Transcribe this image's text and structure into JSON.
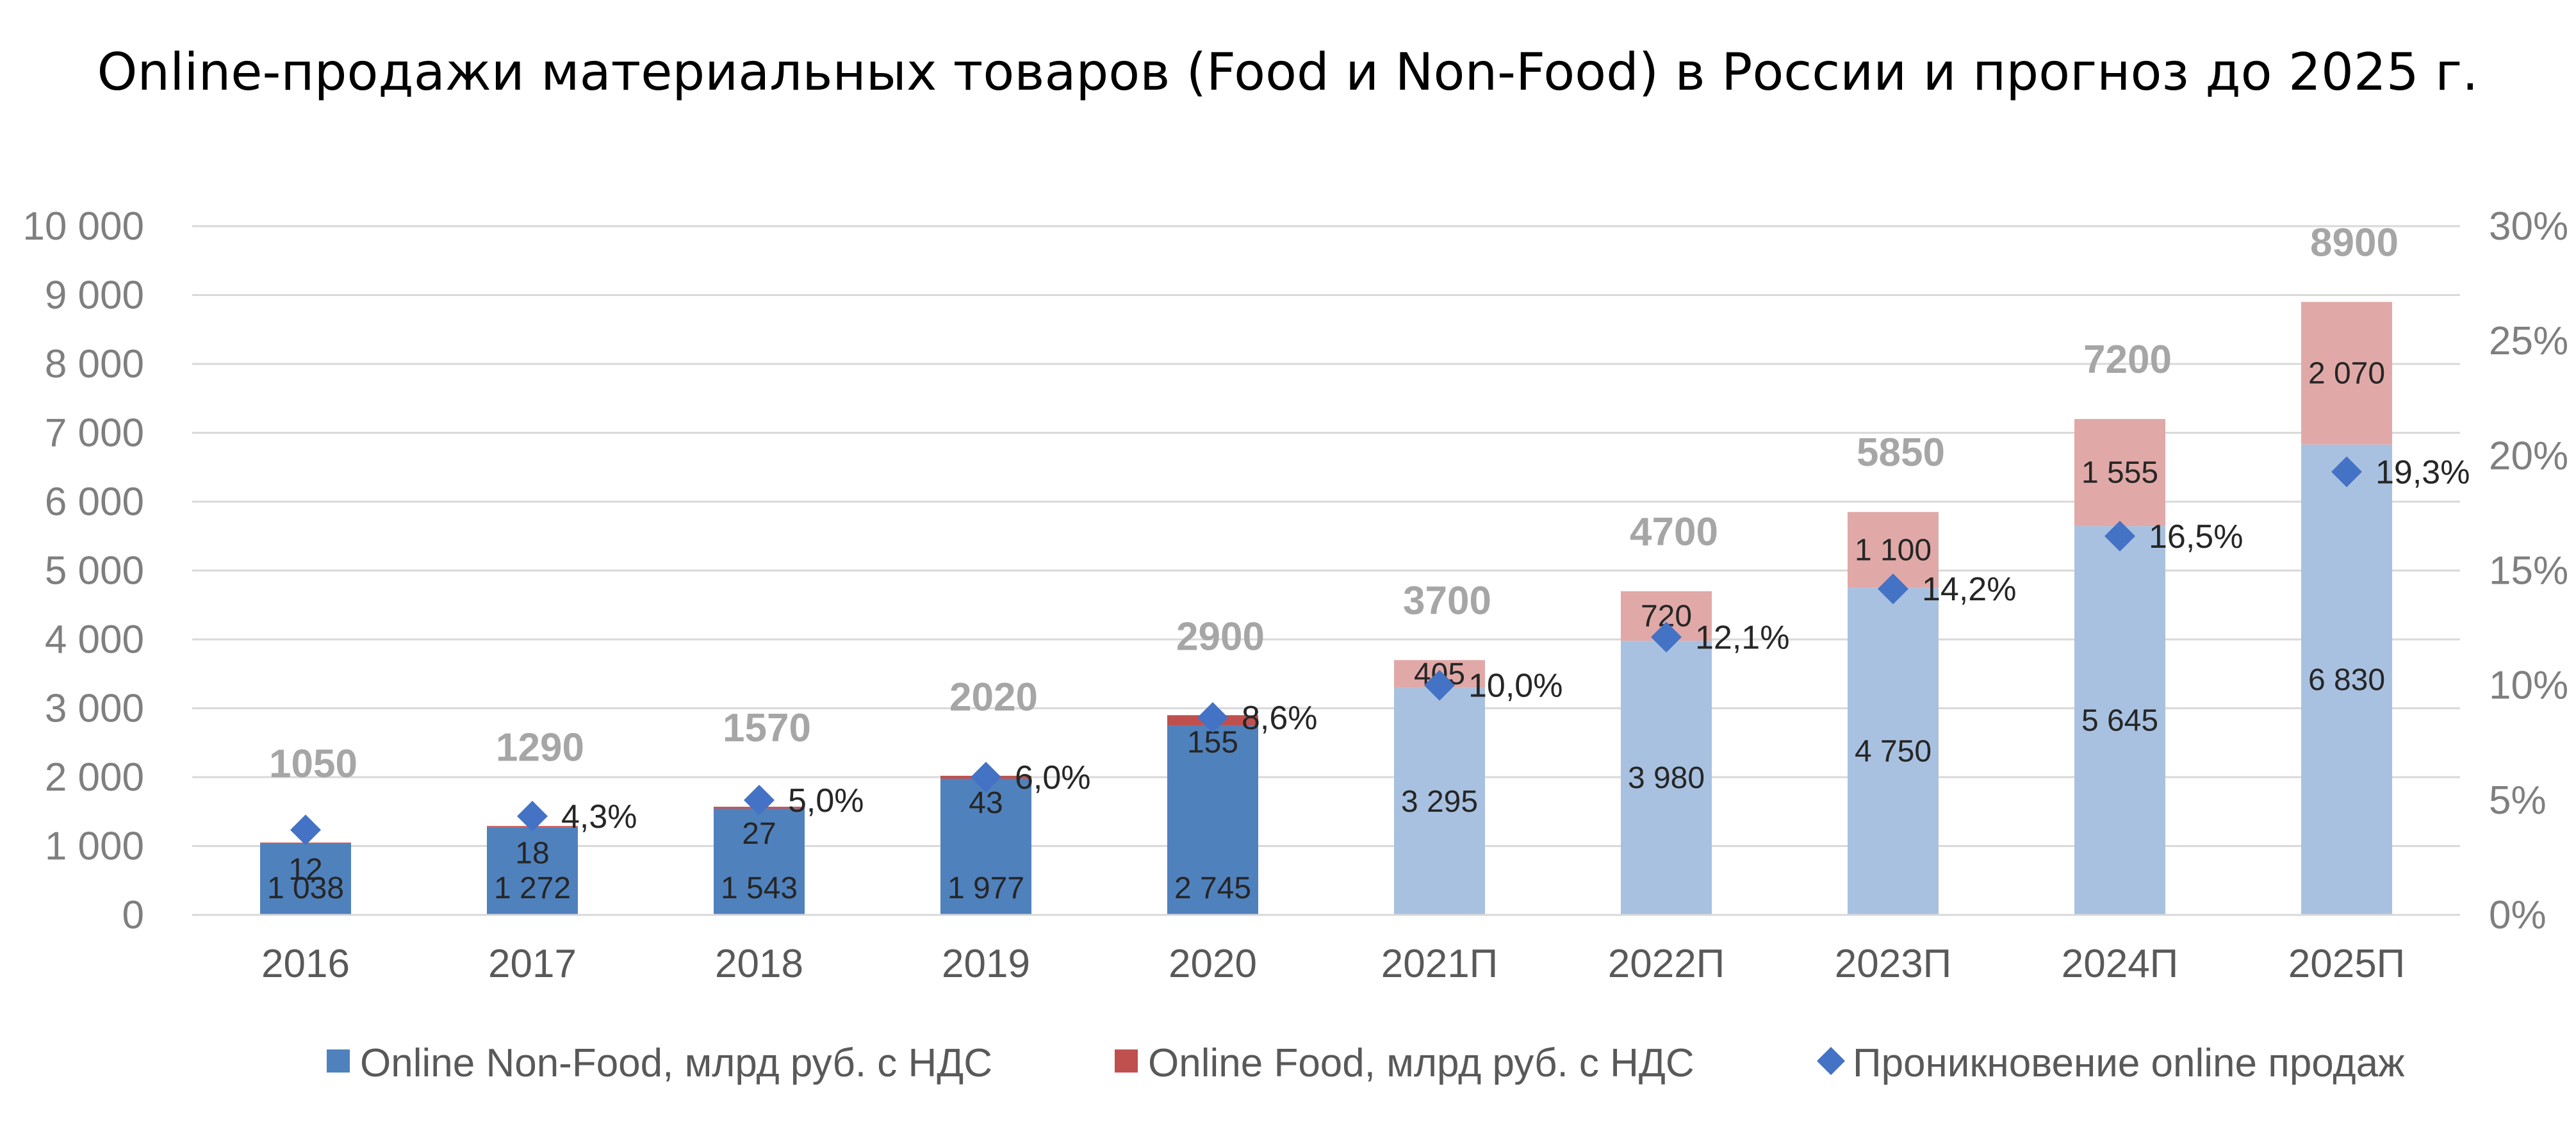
{
  "chart_data": {
    "type": "bar",
    "stacked": true,
    "title": "Online-продажи материальных товаров (Food и Non-Food) в России и прогноз до 2025 г.",
    "categories": [
      "2016",
      "2017",
      "2018",
      "2019",
      "2020",
      "2021П",
      "2022П",
      "2023П",
      "2024П",
      "2025П"
    ],
    "forecast_from_index": 5,
    "series": [
      {
        "name": "Online Non-Food, млрд руб. с НДС",
        "axis": "left",
        "values": [
          1038,
          1272,
          1543,
          1977,
          2745,
          3295,
          3980,
          4750,
          5645,
          6830
        ],
        "labels": [
          "1 038",
          "1 272",
          "1 543",
          "1 977",
          "2 745",
          "3 295",
          "3 980",
          "4 750",
          "5 645",
          "6 830"
        ],
        "color": "#4f81bd",
        "forecast_color": "#a8c1e0"
      },
      {
        "name": "Online Food, млрд руб. с НДС",
        "axis": "left",
        "values": [
          12,
          18,
          27,
          43,
          155,
          405,
          720,
          1100,
          1555,
          2070
        ],
        "labels": [
          "12",
          "18",
          "27",
          "43",
          "155",
          "405",
          "720",
          "1 100",
          "1 555",
          "2 070"
        ],
        "color": "#c0504d",
        "forecast_color": "#e0a9a7"
      },
      {
        "name": "Проникновение online продаж",
        "axis": "right",
        "type": "scatter",
        "marker": "diamond",
        "values": [
          3.7,
          4.3,
          5.0,
          6.0,
          8.6,
          10.0,
          12.1,
          14.2,
          16.5,
          19.3
        ],
        "labels": [
          "",
          "4,3%",
          "5,0%",
          "6,0%",
          "8,6%",
          "10,0%",
          "12,1%",
          "14,2%",
          "16,5%",
          "19,3%"
        ],
        "color": "#4472c4"
      }
    ],
    "totals": [
      1050,
      1290,
      1570,
      2020,
      2900,
      3700,
      4700,
      5850,
      7200,
      8900
    ],
    "y_left": {
      "lim": [
        0,
        10000
      ],
      "ticks": [
        0,
        1000,
        2000,
        3000,
        4000,
        5000,
        6000,
        7000,
        8000,
        9000,
        10000
      ],
      "tick_labels": [
        "0",
        "1 000",
        "2 000",
        "3 000",
        "4 000",
        "5 000",
        "6 000",
        "7 000",
        "8 000",
        "9 000",
        "10 000"
      ]
    },
    "y_right": {
      "lim": [
        0,
        30
      ],
      "ticks": [
        0,
        5,
        10,
        15,
        20,
        25,
        30
      ],
      "tick_labels": [
        "0%",
        "5%",
        "10%",
        "15%",
        "20%",
        "25%",
        "30%"
      ]
    },
    "xlabel": "",
    "ylabel": "",
    "grid": true,
    "legend": "bottom"
  }
}
